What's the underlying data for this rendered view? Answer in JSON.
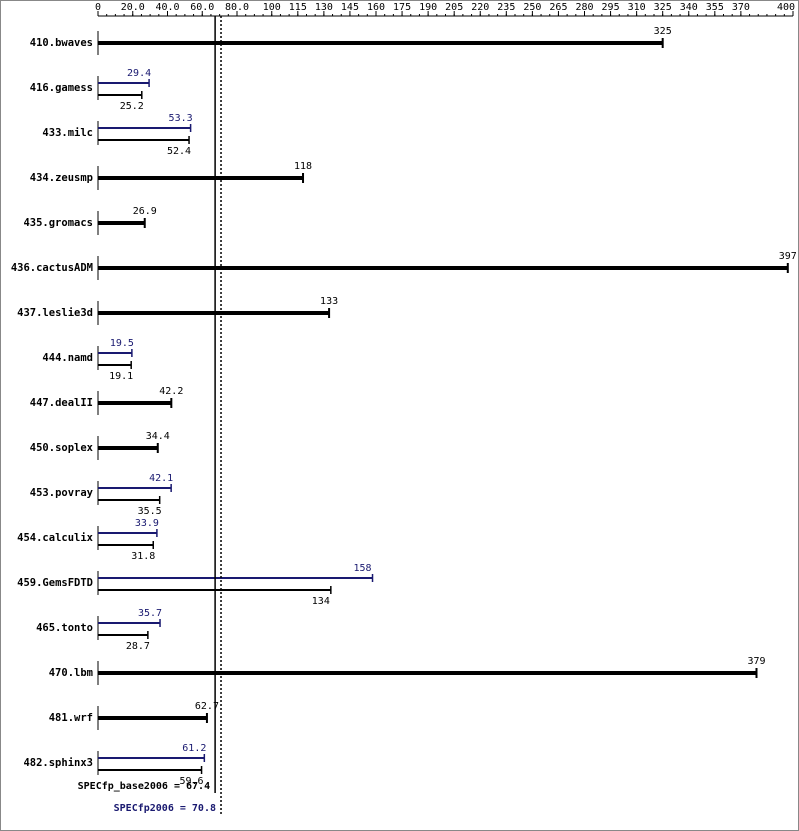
{
  "chart_data": {
    "type": "bar",
    "categories": [
      "410.bwaves",
      "416.gamess",
      "433.milc",
      "434.zeusmp",
      "435.gromacs",
      "436.cactusADM",
      "437.leslie3d",
      "444.namd",
      "447.dealII",
      "450.soplex",
      "453.povray",
      "454.calculix",
      "459.GemsFDTD",
      "465.tonto",
      "470.lbm",
      "481.wrf",
      "482.sphinx3"
    ],
    "series": [
      {
        "color": "#000000",
        "values": [
          325,
          25.2,
          52.4,
          118,
          26.9,
          397,
          133,
          19.1,
          42.2,
          34.4,
          35.5,
          31.8,
          134,
          28.7,
          379,
          62.7,
          59.6
        ]
      },
      {
        "color": "#191970",
        "values": [
          null,
          29.4,
          53.3,
          null,
          null,
          null,
          null,
          19.5,
          null,
          null,
          42.1,
          33.9,
          158,
          35.7,
          null,
          null,
          61.2
        ]
      }
    ],
    "xlim": [
      0,
      400
    ],
    "xticks": [
      0,
      {
        "value": 20,
        "label": "20.0"
      },
      {
        "value": 40,
        "label": "40.0"
      },
      {
        "value": 60,
        "label": "60.0"
      },
      {
        "value": 80,
        "label": "80.0"
      },
      100,
      115,
      130,
      145,
      160,
      175,
      190,
      205,
      220,
      235,
      250,
      265,
      280,
      295,
      310,
      325,
      340,
      355,
      370,
      400
    ],
    "reference_lines": [
      {
        "label": "SPECfp_base2006 = 67.4",
        "value": 67.4,
        "color": "#000000",
        "style": "solid"
      },
      {
        "label": "SPECfp2006 = 70.8",
        "value": 70.8,
        "color": "#191970",
        "style": "dotted"
      }
    ]
  }
}
